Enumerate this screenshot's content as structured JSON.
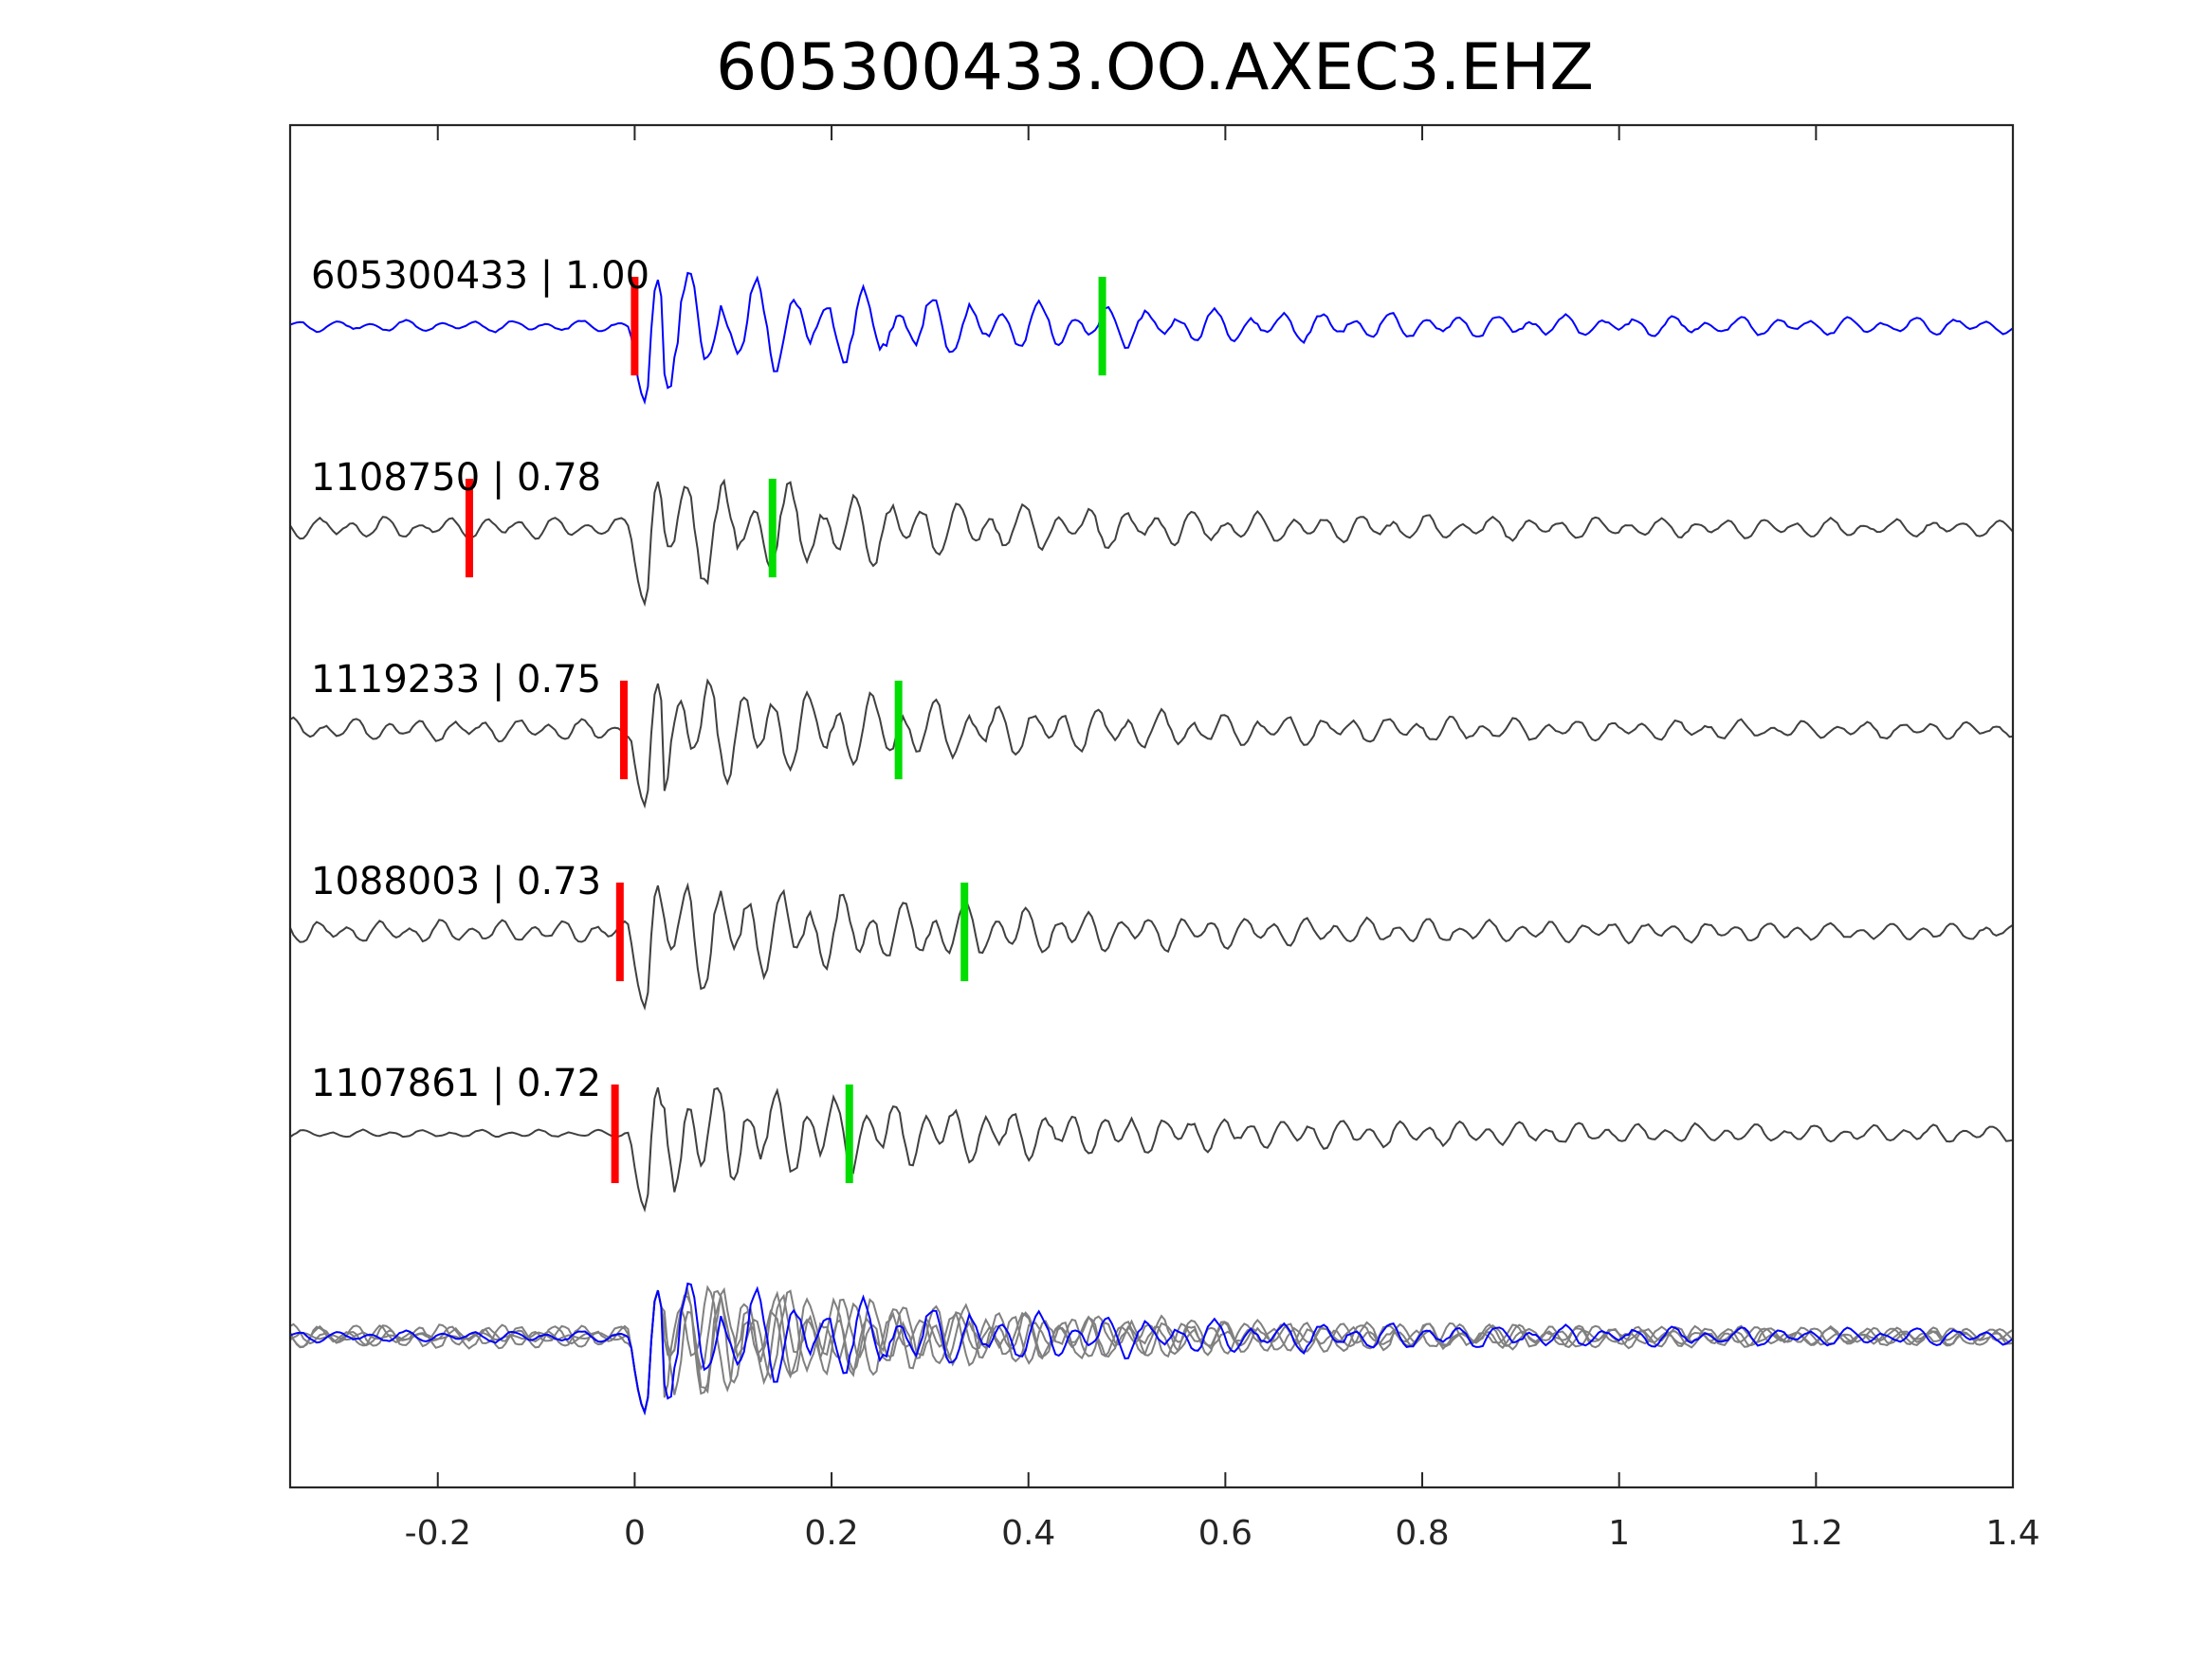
{
  "chart_data": {
    "type": "line",
    "title": "605300433.OO.AXEC3.EHZ",
    "xlabel": "",
    "ylabel": "",
    "xlim": [
      -0.35,
      1.4
    ],
    "x_ticks": [
      -0.2,
      0,
      0.2,
      0.4,
      0.6,
      0.8,
      1,
      1.2,
      1.4
    ],
    "x_tick_labels": [
      "-0.2",
      "0",
      "0.2",
      "0.4",
      "0.6",
      "0.8",
      "1",
      "1.2",
      "1.4"
    ],
    "grid": false,
    "colors": {
      "target": "#0000ff",
      "match": "#404040",
      "overlay_match": "#808080",
      "p_pick": "#ff0000",
      "s_pick": "#00dd00",
      "axes": "#262626"
    },
    "traces": [
      {
        "label": "605300433 | 1.00",
        "event_id": "605300433",
        "cc": "1.00",
        "p_pick": 0.0,
        "s_pick": 0.475,
        "color": "#0000ff",
        "seed": 11
      },
      {
        "label": "1108750 | 0.78",
        "event_id": "1108750",
        "cc": "0.78",
        "p_pick": -0.168,
        "s_pick": 0.14,
        "color": "#404040",
        "seed": 23
      },
      {
        "label": "1119233 | 0.75",
        "event_id": "1119233",
        "cc": "0.75",
        "p_pick": -0.011,
        "s_pick": 0.268,
        "color": "#404040",
        "seed": 37
      },
      {
        "label": "1088003 | 0.73",
        "event_id": "1088003",
        "cc": "0.73",
        "p_pick": -0.015,
        "s_pick": 0.335,
        "color": "#404040",
        "seed": 41
      },
      {
        "label": "1107861 | 0.72",
        "event_id": "1107861",
        "cc": "0.72",
        "p_pick": -0.02,
        "s_pick": 0.218,
        "color": "#404040",
        "seed": 53
      }
    ],
    "overlay": {
      "description": "stacked overlay of all traces"
    }
  }
}
